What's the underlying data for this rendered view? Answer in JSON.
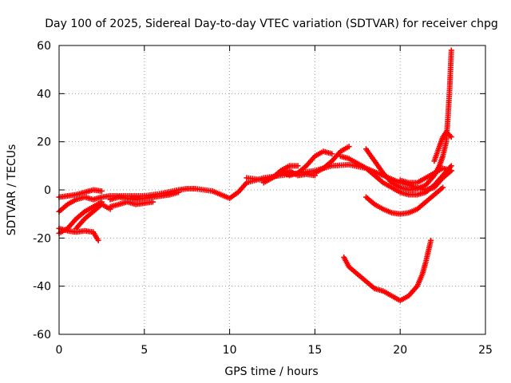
{
  "chart_data": {
    "type": "scatter",
    "title": "Day 100 of 2025, Sidereal Day-to-day VTEC variation (SDTVAR) for receiver chpg",
    "xlabel": "GPS time / hours",
    "ylabel": "SDTVAR / TECUs",
    "xlim": [
      0,
      25
    ],
    "ylim": [
      -60,
      60
    ],
    "xticks": [
      0,
      5,
      10,
      15,
      20,
      25
    ],
    "yticks": [
      -60,
      -40,
      -20,
      0,
      20,
      40,
      60
    ],
    "xtick_labels": [
      "0",
      "5",
      "10",
      "15",
      "20",
      "25"
    ],
    "ytick_labels": [
      "-60",
      "-40",
      "-20",
      "0",
      "20",
      "40",
      "60"
    ],
    "grid": true,
    "marker": "plus",
    "color": "#ff0000",
    "series": [
      {
        "name": "s1",
        "points": [
          [
            0,
            -3
          ],
          [
            0.5,
            -2.5
          ],
          [
            1,
            -2
          ],
          [
            1.5,
            -1
          ],
          [
            2,
            0
          ],
          [
            2.5,
            -0.5
          ]
        ]
      },
      {
        "name": "s2",
        "points": [
          [
            0,
            -9
          ],
          [
            0.5,
            -6
          ],
          [
            1,
            -4
          ],
          [
            1.5,
            -3
          ],
          [
            2,
            -4
          ],
          [
            2.5,
            -3
          ],
          [
            3,
            -2.5
          ],
          [
            4,
            -2.5
          ],
          [
            5,
            -2.5
          ],
          [
            6,
            -1.5
          ],
          [
            7,
            0
          ],
          [
            7.5,
            0.5
          ],
          [
            8,
            0.5
          ],
          [
            9,
            -0.5
          ],
          [
            9.5,
            -2
          ],
          [
            10,
            -3.5
          ],
          [
            10.5,
            -1
          ],
          [
            11,
            3
          ],
          [
            12,
            5
          ],
          [
            13,
            6
          ],
          [
            14,
            7
          ],
          [
            15,
            8
          ],
          [
            16,
            10
          ],
          [
            17,
            10.5
          ],
          [
            18,
            9
          ],
          [
            19,
            6
          ],
          [
            20,
            3
          ],
          [
            21,
            1
          ],
          [
            21.5,
            0
          ],
          [
            22,
            1
          ],
          [
            22.5,
            5
          ],
          [
            23,
            8
          ]
        ]
      },
      {
        "name": "s3",
        "points": [
          [
            0,
            -18
          ],
          [
            0.5,
            -16
          ],
          [
            1,
            -12
          ],
          [
            1.5,
            -9
          ],
          [
            2,
            -7
          ],
          [
            2.5,
            -5
          ]
        ]
      },
      {
        "name": "s4",
        "points": [
          [
            0,
            -16
          ],
          [
            0.5,
            -17
          ],
          [
            1,
            -17.5
          ],
          [
            1.5,
            -17
          ],
          [
            2,
            -17.5
          ],
          [
            2.3,
            -21
          ]
        ]
      },
      {
        "name": "s5",
        "points": [
          [
            1,
            -16
          ],
          [
            1.5,
            -12
          ],
          [
            2,
            -9
          ],
          [
            2.5,
            -6
          ],
          [
            3,
            -8
          ]
        ]
      },
      {
        "name": "s6",
        "points": [
          [
            3,
            -4
          ],
          [
            3.5,
            -3
          ],
          [
            4,
            -3.5
          ],
          [
            4.5,
            -4
          ],
          [
            5,
            -3.5
          ],
          [
            5.5,
            -3
          ],
          [
            6,
            -2.5
          ],
          [
            6.5,
            -2
          ],
          [
            7,
            -1
          ]
        ]
      },
      {
        "name": "s7",
        "points": [
          [
            3,
            -7
          ],
          [
            3.5,
            -6
          ],
          [
            4,
            -5
          ],
          [
            4.5,
            -6
          ],
          [
            5,
            -5.5
          ],
          [
            5.5,
            -5
          ]
        ]
      },
      {
        "name": "s8",
        "points": [
          [
            11,
            5
          ],
          [
            12,
            4
          ],
          [
            12.5,
            5
          ],
          [
            13,
            8
          ],
          [
            13.5,
            10
          ],
          [
            14,
            10
          ]
        ]
      },
      {
        "name": "s9",
        "points": [
          [
            12,
            3
          ],
          [
            12.5,
            5
          ],
          [
            13,
            7
          ],
          [
            13.5,
            8
          ],
          [
            14,
            6
          ],
          [
            14.5,
            6.5
          ],
          [
            15,
            6
          ]
        ]
      },
      {
        "name": "s10",
        "points": [
          [
            13,
            8
          ],
          [
            13.5,
            6
          ],
          [
            14,
            7
          ],
          [
            14.5,
            10
          ],
          [
            15,
            14
          ],
          [
            15.5,
            16
          ],
          [
            16,
            15
          ]
        ]
      },
      {
        "name": "s11",
        "points": [
          [
            15,
            7
          ],
          [
            15.5,
            9
          ],
          [
            16,
            12
          ],
          [
            16.5,
            16
          ],
          [
            17,
            18
          ]
        ]
      },
      {
        "name": "s12",
        "points": [
          [
            16.5,
            14
          ],
          [
            17,
            13
          ],
          [
            17.5,
            11
          ],
          [
            18,
            9
          ],
          [
            18.5,
            6
          ],
          [
            19,
            3
          ],
          [
            19.5,
            1
          ],
          [
            20,
            -1
          ],
          [
            20.5,
            -2
          ],
          [
            21,
            -2
          ],
          [
            21.5,
            -1
          ],
          [
            22,
            2
          ],
          [
            22.5,
            6
          ],
          [
            23,
            10
          ]
        ]
      },
      {
        "name": "s13",
        "points": [
          [
            18,
            17
          ],
          [
            18.5,
            12
          ],
          [
            19,
            7
          ],
          [
            19.5,
            3
          ],
          [
            20,
            1
          ],
          [
            20.5,
            0
          ],
          [
            21,
            0.5
          ],
          [
            21.5,
            2
          ],
          [
            22,
            6
          ],
          [
            22.3,
            10
          ],
          [
            22.5,
            14
          ],
          [
            22.7,
            20
          ],
          [
            22.8,
            30
          ],
          [
            22.9,
            42
          ],
          [
            23,
            58
          ]
        ]
      },
      {
        "name": "s14",
        "points": [
          [
            20,
            4
          ],
          [
            20.5,
            3
          ],
          [
            21,
            3
          ],
          [
            21.5,
            5
          ],
          [
            22,
            7
          ],
          [
            22.5,
            9
          ],
          [
            23,
            8
          ]
        ]
      },
      {
        "name": "s15",
        "points": [
          [
            22,
            12
          ],
          [
            22.3,
            18
          ],
          [
            22.5,
            22
          ],
          [
            22.7,
            24
          ],
          [
            23,
            22
          ]
        ]
      },
      {
        "name": "s16",
        "points": [
          [
            18,
            -3
          ],
          [
            18.5,
            -6
          ],
          [
            19,
            -8
          ],
          [
            19.5,
            -9.5
          ],
          [
            20,
            -10
          ],
          [
            20.5,
            -9.5
          ],
          [
            21,
            -8
          ],
          [
            21.5,
            -5
          ],
          [
            22,
            -2
          ],
          [
            22.5,
            1
          ]
        ]
      },
      {
        "name": "s17",
        "points": [
          [
            16.7,
            -28
          ],
          [
            17,
            -32
          ],
          [
            17.5,
            -35
          ],
          [
            18,
            -38
          ],
          [
            18.5,
            -41
          ],
          [
            19,
            -42
          ],
          [
            19.5,
            -44
          ],
          [
            20,
            -46
          ],
          [
            20.5,
            -44
          ],
          [
            21,
            -40
          ],
          [
            21.3,
            -35
          ],
          [
            21.5,
            -30
          ],
          [
            21.7,
            -24
          ],
          [
            21.8,
            -21
          ]
        ]
      }
    ]
  }
}
